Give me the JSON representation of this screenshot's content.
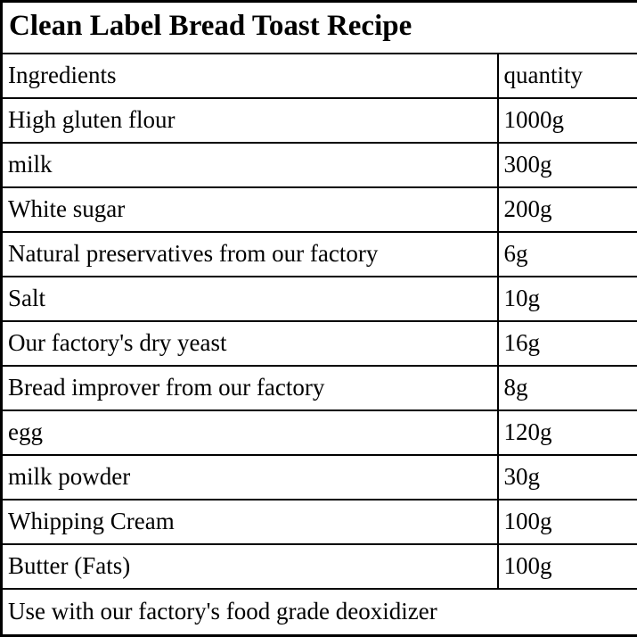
{
  "table": {
    "title": "Clean Label Bread Toast Recipe",
    "columns": [
      "Ingredients",
      "quantity"
    ],
    "rows": [
      {
        "ingredient": "High gluten flour",
        "quantity": "1000g"
      },
      {
        "ingredient": "milk",
        "quantity": "300g"
      },
      {
        "ingredient": "White sugar",
        "quantity": "200g"
      },
      {
        "ingredient": "Natural preservatives from our factory",
        "quantity": "6g"
      },
      {
        "ingredient": "Salt",
        "quantity": "10g"
      },
      {
        "ingredient": "Our factory's dry yeast",
        "quantity": "16g"
      },
      {
        "ingredient": "Bread improver from our factory",
        "quantity": "8g"
      },
      {
        "ingredient": "egg",
        "quantity": "120g"
      },
      {
        "ingredient": "milk powder",
        "quantity": "30g"
      },
      {
        "ingredient": "Whipping Cream",
        "quantity": "100g"
      },
      {
        "ingredient": "Butter (Fats)",
        "quantity": "100g"
      }
    ],
    "footer": "Use with our factory's food grade deoxidizer",
    "colors": {
      "border": "#000000",
      "background": "#ffffff",
      "text": "#000000"
    }
  }
}
